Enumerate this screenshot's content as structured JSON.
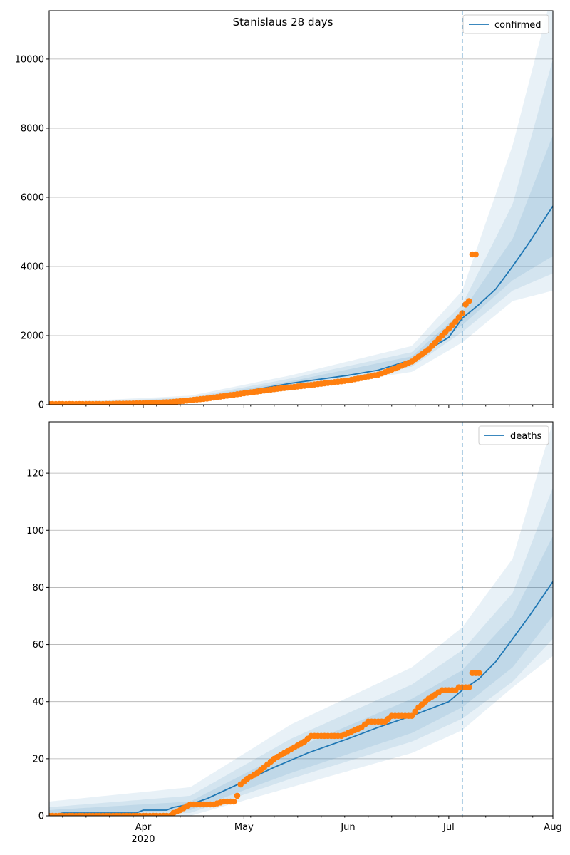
{
  "chart_data": [
    {
      "type": "line",
      "title": "Stanislaus 28 days",
      "xlabel": "",
      "ylabel": "",
      "x_range": [
        "2020-03-04",
        "2020-08-01"
      ],
      "ylim": [
        0,
        11400
      ],
      "y_ticks": [
        0,
        2000,
        4000,
        6000,
        8000,
        10000
      ],
      "grid": "y",
      "legend": "top-right",
      "forecast_start": "2020-07-05",
      "series": [
        {
          "name": "confirmed",
          "kind": "median-line",
          "color": "#1f77b4",
          "points": [
            [
              "2020-03-04",
              0
            ],
            [
              "2020-03-20",
              10
            ],
            [
              "2020-04-01",
              45
            ],
            [
              "2020-04-15",
              150
            ],
            [
              "2020-05-01",
              380
            ],
            [
              "2020-05-15",
              620
            ],
            [
              "2020-06-01",
              850
            ],
            [
              "2020-06-10",
              1000
            ],
            [
              "2020-06-20",
              1300
            ],
            [
              "2020-07-01",
              1950
            ],
            [
              "2020-07-05",
              2500
            ],
            [
              "2020-07-10",
              2900
            ],
            [
              "2020-07-15",
              3350
            ],
            [
              "2020-07-20",
              4000
            ],
            [
              "2020-07-25",
              4700
            ],
            [
              "2020-08-01",
              5750
            ]
          ]
        },
        {
          "name": "",
          "kind": "observed",
          "color": "#ff7f0e",
          "points": [
            [
              "2020-03-04",
              20
            ],
            [
              "2020-03-20",
              20
            ],
            [
              "2020-04-01",
              40
            ],
            [
              "2020-04-10",
              80
            ],
            [
              "2020-04-20",
              180
            ],
            [
              "2020-05-01",
              330
            ],
            [
              "2020-05-10",
              450
            ],
            [
              "2020-05-20",
              560
            ],
            [
              "2020-06-01",
              700
            ],
            [
              "2020-06-10",
              870
            ],
            [
              "2020-06-15",
              1050
            ],
            [
              "2020-06-20",
              1250
            ],
            [
              "2020-06-25",
              1600
            ],
            [
              "2020-06-30",
              2100
            ],
            [
              "2020-07-03",
              2400
            ],
            [
              "2020-07-05",
              2650
            ],
            [
              "2020-07-06",
              2900
            ],
            [
              "2020-07-07",
              3000
            ],
            [
              "2020-07-08",
              4350
            ],
            [
              "2020-07-09",
              4350
            ]
          ]
        }
      ],
      "bands": [
        {
          "level": "outer",
          "lower": [
            [
              "2020-03-04",
              0
            ],
            [
              "2020-04-15",
              60
            ],
            [
              "2020-05-15",
              420
            ],
            [
              "2020-06-20",
              950
            ],
            [
              "2020-07-05",
              1800
            ],
            [
              "2020-07-20",
              3000
            ],
            [
              "2020-08-01",
              3300
            ]
          ],
          "upper": [
            [
              "2020-03-04",
              60
            ],
            [
              "2020-04-15",
              260
            ],
            [
              "2020-05-15",
              850
            ],
            [
              "2020-06-20",
              1700
            ],
            [
              "2020-07-05",
              3300
            ],
            [
              "2020-07-20",
              7500
            ],
            [
              "2020-08-01",
              12000
            ]
          ]
        },
        {
          "level": "middle",
          "lower": [
            [
              "2020-03-04",
              0
            ],
            [
              "2020-04-15",
              90
            ],
            [
              "2020-05-15",
              500
            ],
            [
              "2020-06-20",
              1100
            ],
            [
              "2020-07-05",
              2100
            ],
            [
              "2020-07-20",
              3300
            ],
            [
              "2020-08-01",
              3800
            ]
          ],
          "upper": [
            [
              "2020-03-04",
              40
            ],
            [
              "2020-04-15",
              210
            ],
            [
              "2020-05-15",
              760
            ],
            [
              "2020-06-20",
              1520
            ],
            [
              "2020-07-05",
              2900
            ],
            [
              "2020-07-20",
              5800
            ],
            [
              "2020-08-01",
              10000
            ]
          ]
        },
        {
          "level": "inner",
          "lower": [
            [
              "2020-03-04",
              0
            ],
            [
              "2020-04-15",
              115
            ],
            [
              "2020-05-15",
              560
            ],
            [
              "2020-06-20",
              1200
            ],
            [
              "2020-07-05",
              2300
            ],
            [
              "2020-07-20",
              3600
            ],
            [
              "2020-08-01",
              4300
            ]
          ],
          "upper": [
            [
              "2020-03-04",
              25
            ],
            [
              "2020-04-15",
              185
            ],
            [
              "2020-05-15",
              680
            ],
            [
              "2020-06-20",
              1400
            ],
            [
              "2020-07-05",
              2700
            ],
            [
              "2020-07-20",
              4800
            ],
            [
              "2020-08-01",
              7800
            ]
          ]
        }
      ]
    },
    {
      "type": "line",
      "title": "",
      "xlabel": "",
      "ylabel": "",
      "x_range": [
        "2020-03-04",
        "2020-08-01"
      ],
      "x_ticks": [
        {
          "date": "2020-04-01",
          "label": "Apr",
          "sublabel": "2020"
        },
        {
          "date": "2020-05-01",
          "label": "May",
          "sublabel": ""
        },
        {
          "date": "2020-06-01",
          "label": "Jun",
          "sublabel": ""
        },
        {
          "date": "2020-07-01",
          "label": "Jul",
          "sublabel": ""
        },
        {
          "date": "2020-08-01",
          "label": "Aug",
          "sublabel": ""
        }
      ],
      "ylim": [
        0,
        138
      ],
      "y_ticks": [
        0,
        20,
        40,
        60,
        80,
        100,
        120
      ],
      "grid": "y",
      "legend": "top-right",
      "forecast_start": "2020-07-05",
      "series": [
        {
          "name": "deaths",
          "kind": "median-line",
          "color": "#1f77b4",
          "points": [
            [
              "2020-03-04",
              0
            ],
            [
              "2020-03-08",
              1
            ],
            [
              "2020-03-30",
              1
            ],
            [
              "2020-04-01",
              2
            ],
            [
              "2020-04-08",
              2
            ],
            [
              "2020-04-10",
              3
            ],
            [
              "2020-04-15",
              4
            ],
            [
              "2020-04-20",
              6
            ],
            [
              "2020-05-01",
              12
            ],
            [
              "2020-05-10",
              17
            ],
            [
              "2020-05-20",
              22
            ],
            [
              "2020-06-01",
              27
            ],
            [
              "2020-06-10",
              31
            ],
            [
              "2020-06-20",
              35
            ],
            [
              "2020-07-01",
              40
            ],
            [
              "2020-07-05",
              44
            ],
            [
              "2020-07-10",
              48
            ],
            [
              "2020-07-15",
              54
            ],
            [
              "2020-07-20",
              62
            ],
            [
              "2020-07-25",
              70
            ],
            [
              "2020-08-01",
              82
            ]
          ]
        },
        {
          "name": "",
          "kind": "observed",
          "color": "#ff7f0e",
          "points": [
            [
              "2020-03-04",
              0
            ],
            [
              "2020-04-09",
              0
            ],
            [
              "2020-04-10",
              1
            ],
            [
              "2020-04-12",
              2
            ],
            [
              "2020-04-15",
              4
            ],
            [
              "2020-04-22",
              4
            ],
            [
              "2020-04-25",
              5
            ],
            [
              "2020-04-28",
              5
            ],
            [
              "2020-04-29",
              7
            ],
            [
              "2020-04-30",
              11
            ],
            [
              "2020-05-02",
              13
            ],
            [
              "2020-05-05",
              15
            ],
            [
              "2020-05-07",
              17
            ],
            [
              "2020-05-10",
              20
            ],
            [
              "2020-05-13",
              22
            ],
            [
              "2020-05-16",
              24
            ],
            [
              "2020-05-19",
              26
            ],
            [
              "2020-05-21",
              28
            ],
            [
              "2020-05-30",
              28
            ],
            [
              "2020-06-01",
              29
            ],
            [
              "2020-06-05",
              31
            ],
            [
              "2020-06-07",
              33
            ],
            [
              "2020-06-12",
              33
            ],
            [
              "2020-06-14",
              35
            ],
            [
              "2020-06-20",
              35
            ],
            [
              "2020-06-22",
              38
            ],
            [
              "2020-06-25",
              41
            ],
            [
              "2020-06-29",
              44
            ],
            [
              "2020-07-03",
              44
            ],
            [
              "2020-07-04",
              45
            ],
            [
              "2020-07-07",
              45
            ],
            [
              "2020-07-08",
              50
            ],
            [
              "2020-07-10",
              50
            ]
          ]
        }
      ],
      "bands": [
        {
          "level": "outer",
          "lower": [
            [
              "2020-03-04",
              0
            ],
            [
              "2020-04-15",
              0
            ],
            [
              "2020-05-15",
              10
            ],
            [
              "2020-06-20",
              22
            ],
            [
              "2020-07-05",
              30
            ],
            [
              "2020-07-20",
              45
            ],
            [
              "2020-08-01",
              56
            ]
          ],
          "upper": [
            [
              "2020-03-04",
              5
            ],
            [
              "2020-04-15",
              10
            ],
            [
              "2020-05-15",
              32
            ],
            [
              "2020-06-20",
              52
            ],
            [
              "2020-07-05",
              66
            ],
            [
              "2020-07-20",
              90
            ],
            [
              "2020-08-01",
              138
            ]
          ]
        },
        {
          "level": "middle",
          "lower": [
            [
              "2020-03-04",
              0
            ],
            [
              "2020-04-15",
              1
            ],
            [
              "2020-05-15",
              13
            ],
            [
              "2020-06-20",
              26
            ],
            [
              "2020-07-05",
              34
            ],
            [
              "2020-07-20",
              47
            ],
            [
              "2020-08-01",
              62
            ]
          ],
          "upper": [
            [
              "2020-03-04",
              3
            ],
            [
              "2020-04-15",
              7
            ],
            [
              "2020-05-15",
              27
            ],
            [
              "2020-06-20",
              46
            ],
            [
              "2020-07-05",
              58
            ],
            [
              "2020-07-20",
              78
            ],
            [
              "2020-08-01",
              115
            ]
          ]
        },
        {
          "level": "inner",
          "lower": [
            [
              "2020-03-04",
              0
            ],
            [
              "2020-04-15",
              2
            ],
            [
              "2020-05-15",
              15
            ],
            [
              "2020-06-20",
              29
            ],
            [
              "2020-07-05",
              38
            ],
            [
              "2020-07-20",
              52
            ],
            [
              "2020-08-01",
              70
            ]
          ],
          "upper": [
            [
              "2020-03-04",
              2
            ],
            [
              "2020-04-15",
              5
            ],
            [
              "2020-05-15",
              23
            ],
            [
              "2020-06-20",
              41
            ],
            [
              "2020-07-05",
              51
            ],
            [
              "2020-07-20",
              70
            ],
            [
              "2020-08-01",
              98
            ]
          ]
        }
      ]
    }
  ]
}
